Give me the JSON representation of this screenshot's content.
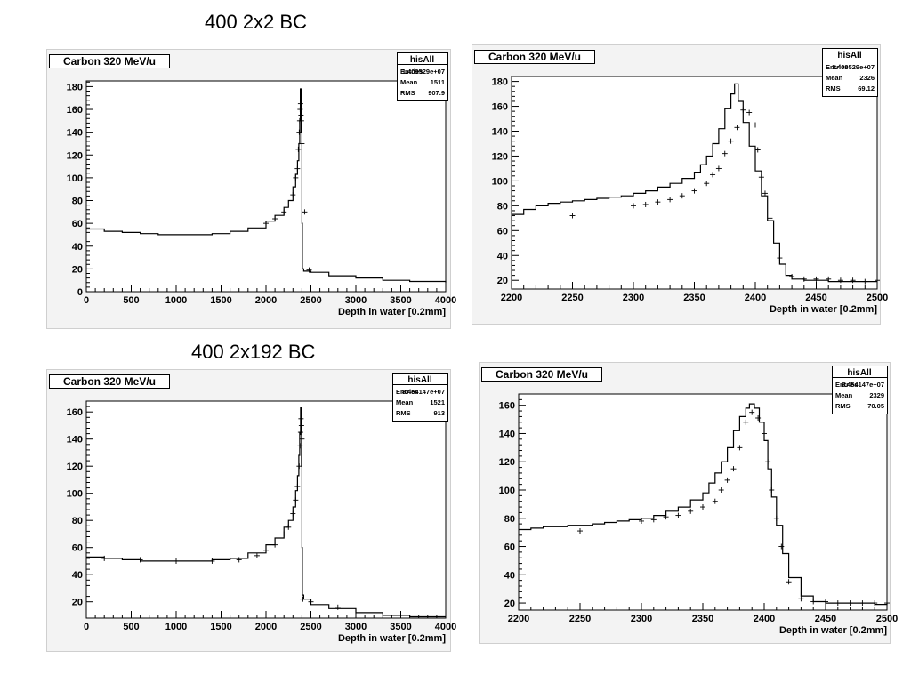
{
  "headings": {
    "top": "400 2x2 BC",
    "bottom": "400 2x192 BC"
  },
  "colors": {
    "frame_bg": "#f3f3f3",
    "plot_bg": "#ffffff",
    "line": "#000000"
  },
  "chart_data": [
    {
      "type": "line",
      "title": "Carbon 320 MeV/u",
      "xlabel": "Depth in water [0.2mm]",
      "ylabel": "",
      "xlim": [
        0,
        4000
      ],
      "ylim": [
        0,
        185
      ],
      "xticks": [
        "0",
        "500",
        "1000",
        "1500",
        "2000",
        "2500",
        "3000",
        "3500",
        "4000"
      ],
      "yticks": [
        "0",
        "20",
        "40",
        "60",
        "80",
        "100",
        "120",
        "140",
        "160",
        "180"
      ],
      "ytick_values": [
        0,
        20,
        40,
        60,
        80,
        100,
        120,
        140,
        160,
        180
      ],
      "stats": {
        "name": "hisAll",
        "entries": "1.409529e+07",
        "mean": "1511",
        "rms": "907.9"
      },
      "series": [
        {
          "style": "histogram",
          "x": [
            0,
            200,
            400,
            600,
            800,
            1000,
            1200,
            1400,
            1600,
            1800,
            2000,
            2100,
            2200,
            2250,
            2300,
            2330,
            2350,
            2365,
            2375,
            2382,
            2390,
            2400,
            2405,
            2420,
            2500,
            2700,
            3000,
            3300,
            3600,
            4000
          ],
          "y": [
            55,
            53,
            52,
            51,
            50,
            50,
            50,
            51,
            53,
            56,
            62,
            67,
            74,
            80,
            92,
            103,
            115,
            130,
            150,
            178,
            140,
            60,
            20,
            18,
            17,
            14,
            12,
            10,
            9,
            8
          ]
        },
        {
          "style": "markers",
          "x": [
            2000,
            2100,
            2200,
            2300,
            2330,
            2350,
            2360,
            2370,
            2375,
            2380,
            2385,
            2390,
            2395,
            2400,
            2430,
            2480
          ],
          "y": [
            60,
            64,
            70,
            85,
            100,
            108,
            125,
            140,
            150,
            160,
            165,
            155,
            150,
            130,
            70,
            19
          ]
        }
      ]
    },
    {
      "type": "line",
      "title": "Carbon 320 MeV/u",
      "xlabel": "Depth in water [0.2mm]",
      "ylabel": "",
      "xlim": [
        2200,
        2500
      ],
      "ylim": [
        13,
        184
      ],
      "xticks": [
        "2200",
        "2250",
        "2300",
        "2350",
        "2400",
        "2450",
        "2500"
      ],
      "yticks": [
        "20",
        "40",
        "60",
        "80",
        "100",
        "120",
        "140",
        "160",
        "180"
      ],
      "ytick_values": [
        20,
        40,
        60,
        80,
        100,
        120,
        140,
        160,
        180
      ],
      "stats": {
        "name": "hisAll",
        "entries": "1.409529e+07",
        "mean": "2326",
        "rms": "69.12"
      },
      "series": [
        {
          "style": "histogram",
          "x": [
            2200,
            2210,
            2220,
            2230,
            2240,
            2250,
            2260,
            2270,
            2280,
            2290,
            2300,
            2310,
            2320,
            2330,
            2340,
            2350,
            2355,
            2360,
            2365,
            2370,
            2375,
            2380,
            2383,
            2386,
            2390,
            2395,
            2400,
            2405,
            2410,
            2415,
            2420,
            2425,
            2430,
            2440,
            2450,
            2460,
            2470,
            2480,
            2490,
            2500
          ],
          "y": [
            73,
            77,
            80,
            82,
            83,
            84,
            85,
            86,
            87,
            88,
            90,
            92,
            95,
            98,
            102,
            107,
            113,
            120,
            130,
            142,
            158,
            170,
            178,
            164,
            147,
            128,
            108,
            88,
            68,
            50,
            33,
            24,
            21,
            20,
            20,
            19,
            19,
            19,
            19,
            19
          ]
        },
        {
          "style": "markers",
          "x": [
            2250,
            2300,
            2310,
            2320,
            2330,
            2340,
            2350,
            2360,
            2365,
            2370,
            2375,
            2380,
            2385,
            2390,
            2395,
            2400,
            2402,
            2405,
            2408,
            2412,
            2420,
            2430,
            2440,
            2450,
            2460,
            2470,
            2480,
            2490,
            2500
          ],
          "y": [
            72,
            80,
            81,
            83,
            85,
            88,
            92,
            98,
            105,
            110,
            122,
            132,
            143,
            157,
            155,
            145,
            125,
            103,
            90,
            70,
            38,
            23,
            21,
            21,
            21,
            20,
            20,
            19,
            20
          ]
        }
      ]
    },
    {
      "type": "line",
      "title": "Carbon 320 MeV/u",
      "xlabel": "Depth in water [0.2mm]",
      "ylabel": "",
      "xlim": [
        0,
        4000
      ],
      "ylim": [
        8,
        168
      ],
      "xticks": [
        "0",
        "500",
        "1000",
        "1500",
        "2000",
        "2500",
        "3000",
        "3500",
        "4000"
      ],
      "yticks": [
        "20",
        "40",
        "60",
        "80",
        "100",
        "120",
        "140",
        "160"
      ],
      "ytick_values": [
        20,
        40,
        60,
        80,
        100,
        120,
        140,
        160
      ],
      "stats": {
        "name": "hisAll",
        "entries": "8.454147e+07",
        "mean": "1521",
        "rms": "913"
      },
      "series": [
        {
          "style": "histogram",
          "x": [
            0,
            200,
            400,
            600,
            800,
            1000,
            1200,
            1400,
            1600,
            1800,
            2000,
            2100,
            2200,
            2250,
            2300,
            2330,
            2350,
            2365,
            2375,
            2385,
            2395,
            2400,
            2405,
            2420,
            2500,
            2700,
            3000,
            3300,
            3600,
            4000
          ],
          "y": [
            53,
            52,
            51,
            50,
            50,
            50,
            50,
            51,
            52,
            56,
            62,
            67,
            75,
            80,
            90,
            102,
            113,
            128,
            145,
            163,
            120,
            60,
            25,
            22,
            18,
            15,
            12,
            10,
            9,
            9
          ]
        },
        {
          "style": "markers",
          "x": [
            200,
            600,
            1000,
            1400,
            1700,
            1900,
            2000,
            2100,
            2200,
            2250,
            2300,
            2330,
            2350,
            2370,
            2380,
            2385,
            2390,
            2395,
            2400,
            2410,
            2500,
            2800
          ],
          "y": [
            52,
            51,
            50,
            50,
            51,
            54,
            58,
            62,
            70,
            75,
            85,
            95,
            105,
            120,
            135,
            145,
            155,
            150,
            140,
            22,
            20,
            16
          ]
        }
      ]
    },
    {
      "type": "line",
      "title": "Carbon 320 MeV/u",
      "xlabel": "Depth in water [0.2mm]",
      "ylabel": "",
      "xlim": [
        2200,
        2500
      ],
      "ylim": [
        15,
        168
      ],
      "xticks": [
        "2200",
        "2250",
        "2300",
        "2350",
        "2400",
        "2450",
        "2500"
      ],
      "yticks": [
        "20",
        "40",
        "60",
        "80",
        "100",
        "120",
        "140",
        "160"
      ],
      "ytick_values": [
        20,
        40,
        60,
        80,
        100,
        120,
        140,
        160
      ],
      "stats": {
        "name": "hisAll",
        "entries": "8.454147e+07",
        "mean": "2329",
        "rms": "70.05"
      },
      "series": [
        {
          "style": "histogram",
          "x": [
            2200,
            2210,
            2220,
            2230,
            2240,
            2250,
            2260,
            2270,
            2280,
            2290,
            2300,
            2310,
            2320,
            2330,
            2340,
            2350,
            2355,
            2360,
            2365,
            2370,
            2375,
            2380,
            2385,
            2388,
            2392,
            2396,
            2400,
            2403,
            2406,
            2410,
            2415,
            2420,
            2430,
            2440,
            2450,
            2460,
            2470,
            2480,
            2490,
            2500
          ],
          "y": [
            72,
            73,
            74,
            74,
            75,
            75,
            76,
            77,
            78,
            79,
            80,
            82,
            85,
            88,
            93,
            98,
            105,
            112,
            120,
            130,
            142,
            152,
            158,
            161,
            158,
            148,
            135,
            115,
            95,
            75,
            55,
            38,
            25,
            21,
            20,
            20,
            20,
            20,
            19,
            20
          ]
        },
        {
          "style": "markers",
          "x": [
            2250,
            2300,
            2310,
            2320,
            2330,
            2340,
            2350,
            2360,
            2365,
            2370,
            2375,
            2380,
            2385,
            2390,
            2395,
            2400,
            2403,
            2406,
            2410,
            2414,
            2420,
            2430,
            2440,
            2450,
            2460,
            2470,
            2480,
            2490,
            2500
          ],
          "y": [
            71,
            78,
            79,
            81,
            82,
            85,
            88,
            92,
            100,
            107,
            115,
            130,
            148,
            155,
            151,
            140,
            120,
            100,
            80,
            60,
            35,
            23,
            21,
            21,
            20,
            20,
            20,
            20,
            20
          ]
        }
      ]
    }
  ]
}
